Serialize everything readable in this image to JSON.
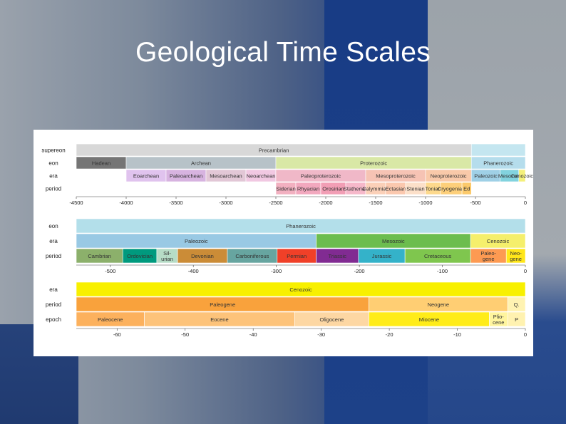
{
  "slide": {
    "title": "Geological Time Scales"
  },
  "chart_data": [
    {
      "type": "timeline",
      "title": "",
      "axis": {
        "min": -4500,
        "max": 0,
        "ticks": [
          -4500,
          -4000,
          -3500,
          -3000,
          -2500,
          -2000,
          -1500,
          -1000,
          -500,
          0
        ]
      },
      "rows": [
        {
          "label": "supereon",
          "bands": [
            {
              "name": "Precambrian",
              "start": -4600,
              "end": -541,
              "color": "#d8d8d8"
            },
            {
              "name": "",
              "start": -541,
              "end": 0,
              "color": "#c4e6f0"
            }
          ]
        },
        {
          "label": "eon",
          "bands": [
            {
              "name": "Hadean",
              "start": -4600,
              "end": -4000,
              "color": "#757575"
            },
            {
              "name": "Archean",
              "start": -4000,
              "end": -2500,
              "color": "#b7c2c8"
            },
            {
              "name": "Proterozoic",
              "start": -2500,
              "end": -541,
              "color": "#d9e8a6"
            },
            {
              "name": "Phanerozoic",
              "start": -541,
              "end": 0,
              "color": "#b5ddec"
            }
          ]
        },
        {
          "label": "era",
          "bands": [
            {
              "name": "",
              "start": -4600,
              "end": -4000,
              "color": "#ffffff"
            },
            {
              "name": "Eoarchean",
              "start": -4000,
              "end": -3600,
              "color": "#e0c3ee"
            },
            {
              "name": "Paleoarchean",
              "start": -3600,
              "end": -3200,
              "color": "#d7b3e0"
            },
            {
              "name": "Mesoarchean",
              "start": -3200,
              "end": -2800,
              "color": "#e2c7d6"
            },
            {
              "name": "Neoarchean",
              "start": -2800,
              "end": -2500,
              "color": "#f1c8e2"
            },
            {
              "name": "Paleoproterozoic",
              "start": -2500,
              "end": -1600,
              "color": "#f0b8c8"
            },
            {
              "name": "Mesoproterozoic",
              "start": -1600,
              "end": -1000,
              "color": "#f6c3b4"
            },
            {
              "name": "Neoproterozoic",
              "start": -1000,
              "end": -541,
              "color": "#f9c9a9"
            },
            {
              "name": "Paleozoic",
              "start": -541,
              "end": -252,
              "color": "#9fd0e6"
            },
            {
              "name": "Mesozoic",
              "start": -252,
              "end": -66,
              "color": "#82d3de"
            },
            {
              "name": "Cenozoic",
              "start": -66,
              "end": 0,
              "color": "#f4f07a"
            }
          ]
        },
        {
          "label": "period",
          "bands": [
            {
              "name": "Siderian",
              "start": -2500,
              "end": -2300,
              "color": "#f2b0c0"
            },
            {
              "name": "Rhyacian",
              "start": -2300,
              "end": -2050,
              "color": "#f2a8be"
            },
            {
              "name": "Orosirian",
              "start": -2050,
              "end": -1800,
              "color": "#f29eb5"
            },
            {
              "name": "Statherian",
              "start": -1800,
              "end": -1600,
              "color": "#f6b8ca"
            },
            {
              "name": "Calymmian",
              "start": -1600,
              "end": -1400,
              "color": "#fbd0b8"
            },
            {
              "name": "Ectasian",
              "start": -1400,
              "end": -1200,
              "color": "#fbc8ae"
            },
            {
              "name": "Stenian",
              "start": -1200,
              "end": -1000,
              "color": "#fce0c9"
            },
            {
              "name": "Tonian",
              "start": -1000,
              "end": -850,
              "color": "#fdd98c"
            },
            {
              "name": "Cryogenian",
              "start": -850,
              "end": -635,
              "color": "#fdcf7a"
            },
            {
              "name": "Ed",
              "start": -635,
              "end": -541,
              "color": "#fbc96a"
            }
          ]
        }
      ]
    },
    {
      "type": "timeline",
      "title": "",
      "axis": {
        "min": -541,
        "max": 0,
        "ticks": [
          -500,
          -400,
          -300,
          -200,
          -100,
          0
        ]
      },
      "rows": [
        {
          "label": "eon",
          "bands": [
            {
              "name": "Phanerozoic",
              "start": -541,
              "end": 0,
              "color": "#b3dfea"
            }
          ]
        },
        {
          "label": "era",
          "bands": [
            {
              "name": "Paleozoic",
              "start": -541,
              "end": -252,
              "color": "#99c9e4"
            },
            {
              "name": "Mesozoic",
              "start": -252,
              "end": -66,
              "color": "#6cbd4e"
            },
            {
              "name": "Cenozoic",
              "start": -66,
              "end": 0,
              "color": "#f5ef6c"
            }
          ]
        },
        {
          "label": "period",
          "bands": [
            {
              "name": "Cambrian",
              "start": -541,
              "end": -485,
              "color": "#8cb06b"
            },
            {
              "name": "Ordovician",
              "start": -485,
              "end": -444,
              "color": "#009a7e"
            },
            {
              "name": "Sil-urian",
              "start": -444,
              "end": -419,
              "color": "#b6dcc6"
            },
            {
              "name": "Devonian",
              "start": -419,
              "end": -359,
              "color": "#cb8c37"
            },
            {
              "name": "Carboniferous",
              "start": -359,
              "end": -299,
              "color": "#67a5a0"
            },
            {
              "name": "Permian",
              "start": -299,
              "end": -252,
              "color": "#f04028"
            },
            {
              "name": "Triassic",
              "start": -252,
              "end": -201,
              "color": "#812b92"
            },
            {
              "name": "Jurassic",
              "start": -201,
              "end": -145,
              "color": "#34b2c9"
            },
            {
              "name": "Cretaceous",
              "start": -145,
              "end": -66,
              "color": "#7fc64e"
            },
            {
              "name": "Paleo-gene",
              "start": -66,
              "end": -23,
              "color": "#fd9a52"
            },
            {
              "name": "Neo-gene",
              "start": -23,
              "end": 0,
              "color": "#ffe619"
            }
          ]
        }
      ]
    },
    {
      "type": "timeline",
      "title": "",
      "axis": {
        "min": -66,
        "max": 0,
        "ticks": [
          -60,
          -50,
          -40,
          -30,
          -20,
          -10,
          0
        ]
      },
      "rows": [
        {
          "label": "era",
          "bands": [
            {
              "name": "Cenozoic",
              "start": -66,
              "end": 0,
              "color": "#f8f000"
            }
          ]
        },
        {
          "label": "period",
          "bands": [
            {
              "name": "Paleogene",
              "start": -66,
              "end": -23,
              "color": "#f9a23c"
            },
            {
              "name": "Neogene",
              "start": -23,
              "end": -2.6,
              "color": "#ffce73"
            },
            {
              "name": "Q.",
              "start": -2.6,
              "end": 0,
              "color": "#fff3b2"
            }
          ]
        },
        {
          "label": "epoch",
          "bands": [
            {
              "name": "Paleocene",
              "start": -66,
              "end": -56,
              "color": "#fcb15d"
            },
            {
              "name": "Eocene",
              "start": -56,
              "end": -33.9,
              "color": "#fdc37a"
            },
            {
              "name": "Oligocene",
              "start": -33.9,
              "end": -23,
              "color": "#fdd7a3"
            },
            {
              "name": "Miocene",
              "start": -23,
              "end": -5.3,
              "color": "#ffec19"
            },
            {
              "name": "Plio-cene",
              "start": -5.3,
              "end": -2.6,
              "color": "#fff59e"
            },
            {
              "name": "P",
              "start": -2.6,
              "end": 0,
              "color": "#fff2b0"
            }
          ]
        }
      ]
    }
  ]
}
